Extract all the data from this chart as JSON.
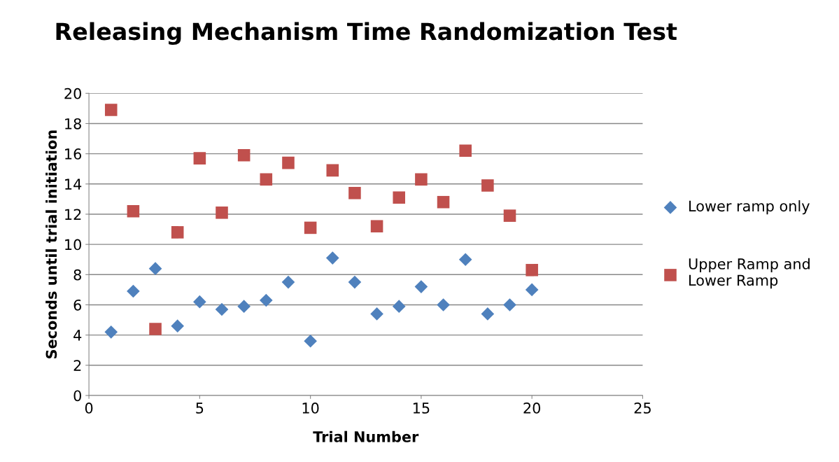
{
  "chart_data": {
    "type": "scatter",
    "title": "Releasing Mechanism Time Randomization Test",
    "xlabel": "Trial Number",
    "ylabel": "Seconds until trial initiation",
    "x": [
      1,
      2,
      3,
      4,
      5,
      6,
      7,
      8,
      9,
      10,
      11,
      12,
      13,
      14,
      15,
      16,
      17,
      18,
      19,
      20
    ],
    "series": [
      {
        "name": "Lower ramp only",
        "color": "#4f81bd",
        "marker": "diamond",
        "values": [
          4.2,
          6.9,
          8.4,
          4.6,
          6.2,
          5.7,
          5.9,
          6.3,
          7.5,
          3.6,
          9.1,
          7.5,
          5.4,
          5.9,
          7.2,
          6.0,
          9.0,
          5.4,
          6.0,
          7.0
        ]
      },
      {
        "name": "Upper Ramp and\nLower Ramp",
        "color": "#c0504d",
        "marker": "square",
        "values": [
          18.9,
          12.2,
          4.4,
          10.8,
          15.7,
          12.1,
          15.9,
          14.3,
          15.4,
          11.1,
          14.9,
          13.4,
          11.2,
          13.1,
          14.3,
          12.8,
          16.2,
          13.9,
          11.9,
          8.3
        ]
      }
    ],
    "xlim": [
      0,
      25
    ],
    "xticks": [
      0,
      5,
      10,
      15,
      20,
      25
    ],
    "ylim": [
      0,
      20
    ],
    "yticks": [
      0,
      2,
      4,
      6,
      8,
      10,
      12,
      14,
      16,
      18,
      20
    ],
    "grid": "y",
    "legend": "right"
  }
}
